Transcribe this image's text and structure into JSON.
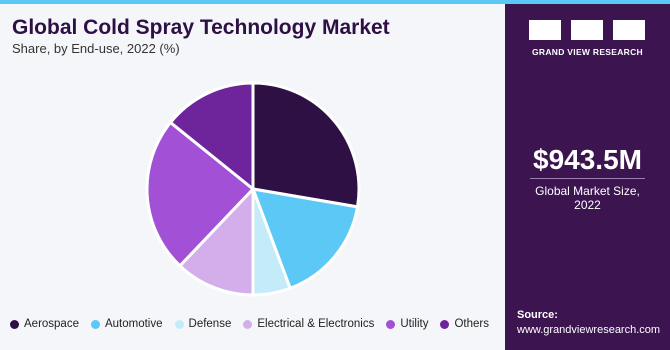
{
  "chart_data": {
    "type": "pie",
    "title": "Global Cold Spray Technology Market",
    "subtitle": "Share, by End-use, 2022 (%)",
    "categories": [
      "Aerospace",
      "Automotive",
      "Defense",
      "Electrical & Electronics",
      "Utility",
      "Others"
    ],
    "values": [
      27.7,
      16.6,
      5.7,
      12.1,
      23.7,
      14.2
    ],
    "colors": [
      "#2e1045",
      "#5bc8f5",
      "#c4ebf9",
      "#d3aeea",
      "#a250d6",
      "#6e259b"
    ]
  },
  "panel": {
    "brand": "GRAND VIEW RESEARCH",
    "market_size": "$943.5M",
    "market_size_label": "Global Market Size, 2022",
    "source_label": "Source:",
    "source_url": "www.grandviewresearch.com"
  }
}
